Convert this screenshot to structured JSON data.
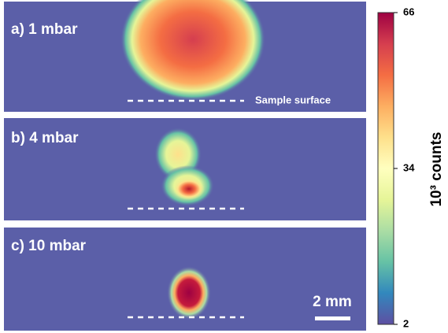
{
  "panels": [
    {
      "label": "a) 1 mbar",
      "annotation": "Sample surface"
    },
    {
      "label": "b) 4 mbar"
    },
    {
      "label": "c) 10 mbar",
      "scale_bar": "2 mm"
    }
  ],
  "colorbar": {
    "label": "10³ counts",
    "lim": [
      2,
      66
    ],
    "ticks": [
      2,
      34,
      66
    ]
  }
}
